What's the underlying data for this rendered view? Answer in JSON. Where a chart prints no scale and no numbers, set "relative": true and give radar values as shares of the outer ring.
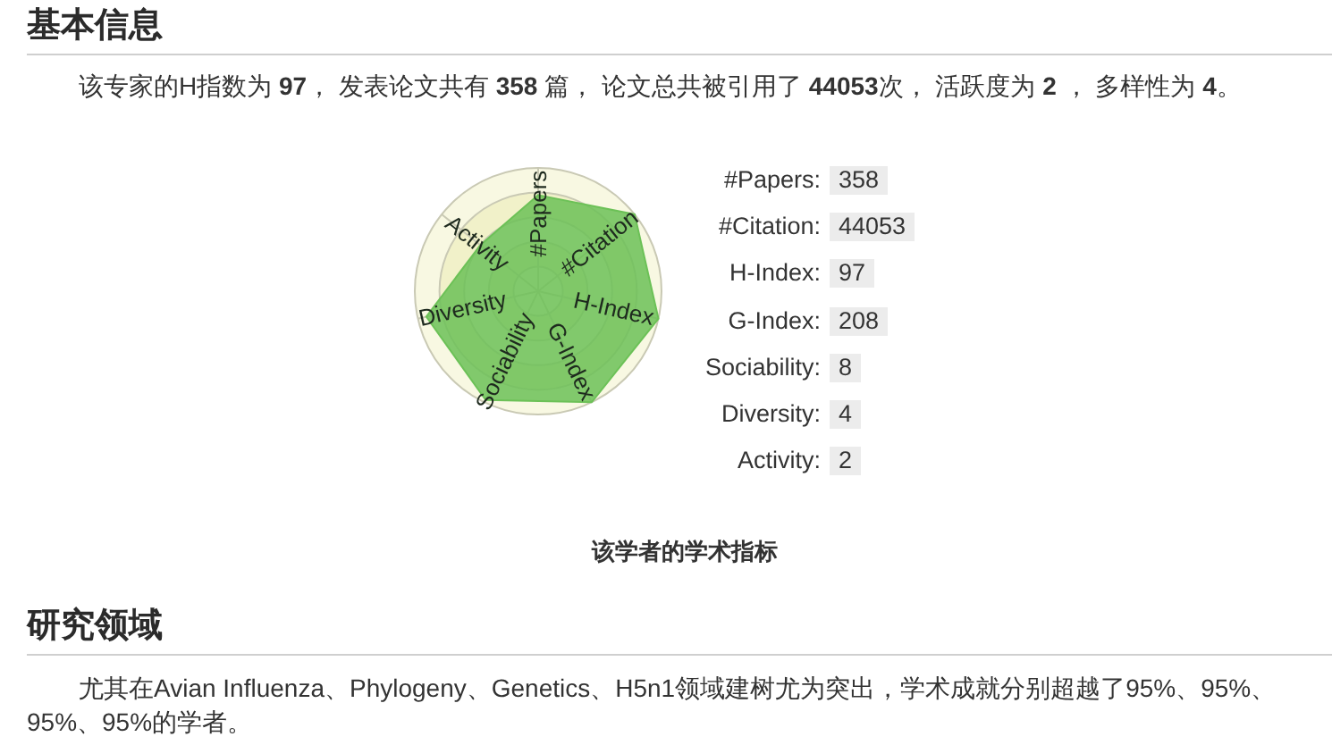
{
  "chart_data": [
    {
      "type": "radar",
      "title": "该学者的学术指标",
      "categories": [
        "#Papers",
        "#Citation",
        "H-Index",
        "G-Index",
        "Sociability",
        "Diversity",
        "Activity"
      ],
      "relative": true,
      "grid": true,
      "series": [
        {
          "color": "#6cc157",
          "values": [
            0.78,
            1,
            1,
            1,
            0.98,
            0.93,
            0.6
          ]
        }
      ],
      "annotations": [
        "基本信息",
        "该专家的H指数为 97， 发表论文共有 358 篇， 论文总共被引用了 44053次， 活跃度为 2 ， 多样性为 4。",
        "研究领域",
        "尤其在Avian Influenza、Phylogeny、Genetics、H5n1领域建树尤为突出，学术成就分别超越了95%、95%、95%、95%的学者。"
      ]
    },
    {
      "type": "other",
      "annotations": [
        "#Papers:",
        "358",
        "#Citation:",
        "44053",
        "H-Index:",
        "97",
        "G-Index:",
        "208",
        "Sociability:",
        "8",
        "Diversity:",
        "4",
        "Activity:",
        "2"
      ]
    }
  ]
}
